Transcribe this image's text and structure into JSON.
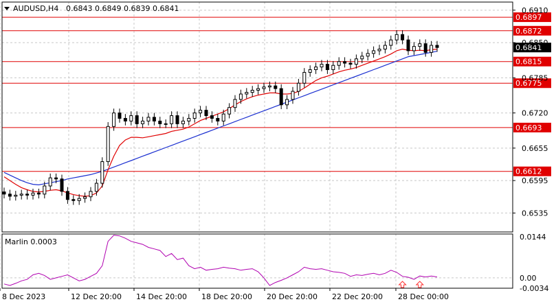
{
  "header": {
    "symbol_timeframe": "AUDUSD,H4",
    "ohlc": "0.6843 0.6849 0.6839 0.6841"
  },
  "indicator": {
    "label": "Marlin 0.0003",
    "ticks": [
      "0.0144",
      "0.00",
      "-0.0034"
    ]
  },
  "colors": {
    "frame": "#000000",
    "grid": "#c8c8c8",
    "level_line": "#e00000",
    "level_box": "#e00000",
    "current_box": "#000000",
    "ma_fast": "#e00000",
    "ma_slow": "#1a2fd0",
    "candle": "#000000",
    "oscillator": "#b000b0",
    "signal_arrow": "#ff3030"
  },
  "chart_data": {
    "type": "candlestick",
    "symbol": "AUDUSD",
    "timeframe": "H4",
    "x_tick_labels": [
      "8 Dec 2023",
      "12 Dec 20:00",
      "14 Dec 20:00",
      "18 Dec 20:00",
      "20 Dec 20:00",
      "22 Dec 20:00",
      "28 Dec 00:00"
    ],
    "y_tick_labels": [
      "0.6910",
      "0.6850",
      "0.6785",
      "0.6720",
      "0.6655",
      "0.6595",
      "0.6535"
    ],
    "ylim": [
      0.65,
      0.6925
    ],
    "grid": true,
    "levels": [
      {
        "value": 0.6897,
        "label": "0.6897"
      },
      {
        "value": 0.6872,
        "label": "0.6872"
      },
      {
        "value": 0.6815,
        "label": "0.6815"
      },
      {
        "value": 0.6775,
        "label": "0.6775"
      },
      {
        "value": 0.6693,
        "label": "0.6693"
      },
      {
        "value": 0.6612,
        "label": "0.6612"
      }
    ],
    "current_price": {
      "value": 0.6841,
      "label": "0.6841"
    },
    "close": [
      0.657,
      0.6566,
      0.6568,
      0.657,
      0.6568,
      0.6572,
      0.657,
      0.6585,
      0.66,
      0.6598,
      0.6575,
      0.656,
      0.6558,
      0.6562,
      0.6565,
      0.6575,
      0.659,
      0.663,
      0.6695,
      0.672,
      0.671,
      0.6705,
      0.6715,
      0.67,
      0.6705,
      0.6712,
      0.6705,
      0.67,
      0.67,
      0.6715,
      0.67,
      0.6705,
      0.671,
      0.672,
      0.6725,
      0.6715,
      0.671,
      0.6705,
      0.6718,
      0.673,
      0.6745,
      0.6755,
      0.6758,
      0.6762,
      0.6765,
      0.6768,
      0.677,
      0.6765,
      0.6735,
      0.6745,
      0.676,
      0.6775,
      0.6795,
      0.68,
      0.6805,
      0.681,
      0.68,
      0.6808,
      0.6815,
      0.6812,
      0.681,
      0.682,
      0.6825,
      0.683,
      0.6835,
      0.6838,
      0.6845,
      0.6855,
      0.6865,
      0.6855,
      0.6835,
      0.6843,
      0.6848,
      0.6832,
      0.6845,
      0.6841
    ],
    "ma_fast": [
      0.6602,
      0.6595,
      0.6588,
      0.6582,
      0.6578,
      0.6575,
      0.6574,
      0.6575,
      0.6577,
      0.6578,
      0.6576,
      0.6572,
      0.6569,
      0.6567,
      0.6566,
      0.6567,
      0.6572,
      0.6585,
      0.6615,
      0.664,
      0.666,
      0.667,
      0.6675,
      0.6675,
      0.6674,
      0.6676,
      0.6678,
      0.668,
      0.6682,
      0.6686,
      0.6688,
      0.669,
      0.6694,
      0.67,
      0.6706,
      0.671,
      0.6714,
      0.6718,
      0.6722,
      0.6728,
      0.6735,
      0.6741,
      0.6746,
      0.675,
      0.6753,
      0.6755,
      0.6757,
      0.6757,
      0.6755,
      0.6755,
      0.6756,
      0.676,
      0.6766,
      0.6773,
      0.678,
      0.6785,
      0.6788,
      0.6792,
      0.6796,
      0.6799,
      0.6801,
      0.6804,
      0.6808,
      0.6812,
      0.6816,
      0.682,
      0.6824,
      0.6829,
      0.6835,
      0.6838,
      0.6836,
      0.6835,
      0.6836,
      0.6835,
      0.6837,
      0.6838
    ],
    "ma_slow": [
      0.661,
      0.6605,
      0.66,
      0.6595,
      0.6591,
      0.6588,
      0.6587,
      0.6589,
      0.6591,
      0.6593,
      0.6595,
      0.6598,
      0.66,
      0.6602,
      0.6604,
      0.6606,
      0.6609,
      0.6612,
      0.6616,
      0.662,
      0.6624,
      0.6628,
      0.6632,
      0.6636,
      0.664,
      0.6644,
      0.6648,
      0.6652,
      0.6656,
      0.666,
      0.6664,
      0.6668,
      0.6672,
      0.6676,
      0.668,
      0.6684,
      0.6688,
      0.6692,
      0.6696,
      0.67,
      0.6704,
      0.6708,
      0.6712,
      0.6716,
      0.672,
      0.6724,
      0.6728,
      0.6732,
      0.6736,
      0.674,
      0.6744,
      0.6748,
      0.6752,
      0.6756,
      0.676,
      0.6764,
      0.6768,
      0.6772,
      0.6776,
      0.678,
      0.6784,
      0.6788,
      0.6792,
      0.6796,
      0.68,
      0.6804,
      0.6808,
      0.6812,
      0.6816,
      0.682,
      0.6824,
      0.6826,
      0.6828,
      0.683,
      0.6832,
      0.6834
    ],
    "oscillator": {
      "name": "Marlin",
      "ylim": [
        -0.0034,
        0.0144
      ],
      "values": [
        -0.002,
        -0.0025,
        -0.0018,
        -0.001,
        -0.0005,
        0.001,
        0.0015,
        0.0008,
        -0.0005,
        0.0,
        0.0005,
        0.001,
        0.0,
        -0.001,
        -0.0005,
        0.0005,
        0.0015,
        0.004,
        0.012,
        0.014,
        0.0138,
        0.013,
        0.012,
        0.0115,
        0.011,
        0.01,
        0.0095,
        0.009,
        0.007,
        0.008,
        0.006,
        0.0065,
        0.004,
        0.003,
        0.0035,
        0.0025,
        0.0028,
        0.003,
        0.0035,
        0.0032,
        0.003,
        0.0025,
        0.0028,
        0.003,
        0.002,
        0.0,
        -0.0025,
        -0.0015,
        -0.0008,
        0.0,
        0.001,
        0.002,
        0.0035,
        0.003,
        0.0028,
        0.003,
        0.0025,
        0.002,
        0.0018,
        0.0015,
        0.0005,
        0.001,
        0.0008,
        0.0012,
        0.0015,
        0.001,
        0.0015,
        0.0025,
        0.0018,
        0.0005,
        0.0002,
        -0.0005,
        0.0006,
        0.0003,
        0.0006,
        0.0003
      ],
      "signal_arrows_at": [
        69,
        72
      ]
    }
  }
}
